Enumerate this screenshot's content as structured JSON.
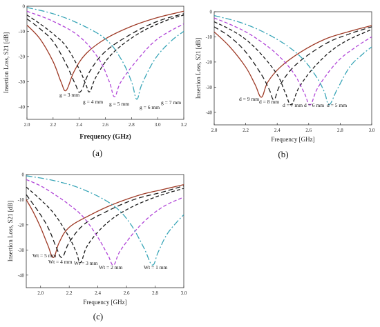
{
  "chart_data": [
    {
      "type": "line",
      "panel_label": "(a)",
      "xlabel": "Frequency (GHz)",
      "ylabel": "Insertion Loss, S21 [dB]",
      "xlim": [
        2.0,
        3.2
      ],
      "ylim": [
        -45,
        0
      ],
      "xticks": [
        "2.0",
        "2.2",
        "2.4",
        "2.6",
        "2.8",
        "3.0",
        "3.2"
      ],
      "yticks": [
        "0",
        "-10",
        "-20",
        "-30",
        "-40"
      ],
      "grid": false,
      "series": [
        {
          "name": "g = 3 mm",
          "color": "#9e3a26",
          "dash": "solid",
          "x": [
            2.0,
            2.1,
            2.2,
            2.26,
            2.3,
            2.36,
            2.45,
            2.6,
            2.8,
            3.0,
            3.2
          ],
          "y": [
            -7.5,
            -13,
            -22,
            -30,
            -33.5,
            -26,
            -19,
            -13,
            -8,
            -4.5,
            -2
          ]
        },
        {
          "name": "g = 4 mm",
          "color": "#1a1a1a",
          "dash": "long",
          "x": [
            2.0,
            2.1,
            2.2,
            2.3,
            2.37,
            2.41,
            2.48,
            2.6,
            2.8,
            3.0,
            3.2
          ],
          "y": [
            -5,
            -9,
            -14,
            -23,
            -31,
            -34,
            -26,
            -18,
            -11,
            -6,
            -3
          ]
        },
        {
          "name": "g = 5 mm",
          "color": "#1a1a1a",
          "dash": "medium",
          "x": [
            2.0,
            2.1,
            2.2,
            2.3,
            2.4,
            2.45,
            2.48,
            2.53,
            2.65,
            2.85,
            3.05,
            3.2
          ],
          "y": [
            -3.5,
            -7,
            -11,
            -16,
            -25,
            -31,
            -34,
            -28,
            -19,
            -11,
            -6,
            -3.5
          ]
        },
        {
          "name": "g = 6 mm",
          "color": "#b146d8",
          "dash": "medium",
          "x": [
            2.0,
            2.2,
            2.4,
            2.55,
            2.63,
            2.67,
            2.72,
            2.85,
            3.0,
            3.2
          ],
          "y": [
            -2,
            -6,
            -12,
            -21,
            -30,
            -36,
            -30,
            -21,
            -13,
            -7
          ]
        },
        {
          "name": "g = 7 mm",
          "color": "#3aa6b8",
          "dash": "dashdot",
          "x": [
            2.0,
            2.2,
            2.4,
            2.6,
            2.72,
            2.8,
            2.84,
            2.88,
            2.98,
            3.1,
            3.2
          ],
          "y": [
            -0.5,
            -3,
            -7,
            -13,
            -21,
            -30,
            -37,
            -31,
            -21,
            -14,
            -10
          ]
        }
      ],
      "annotations": [
        "g = 3 mm",
        "g = 4 mm",
        "g = 5 mm",
        "g = 6 mm",
        "g = 7 mm"
      ]
    },
    {
      "type": "line",
      "panel_label": "(b)",
      "xlabel": "Frequency [GHz]",
      "ylabel": "Insertion Loss, S21 [dB]",
      "xlim": [
        2.0,
        3.0
      ],
      "ylim": [
        -45,
        0
      ],
      "xticks": [
        "2.0",
        "2.2",
        "2.4",
        "2.6",
        "2.8",
        "3.0"
      ],
      "yticks": [
        "0",
        "-10",
        "-20",
        "-30",
        "-40"
      ],
      "grid": false,
      "series": [
        {
          "name": "d = 9 mm",
          "color": "#9e3a26",
          "dash": "solid",
          "x": [
            2.0,
            2.1,
            2.2,
            2.26,
            2.3,
            2.34,
            2.42,
            2.55,
            2.7,
            2.85,
            3.0
          ],
          "y": [
            -8,
            -14,
            -22,
            -29,
            -34,
            -28,
            -22,
            -16,
            -11,
            -8,
            -5.5
          ]
        },
        {
          "name": "d = 8 mm",
          "color": "#1a1a1a",
          "dash": "long",
          "x": [
            2.0,
            2.1,
            2.2,
            2.3,
            2.35,
            2.38,
            2.42,
            2.52,
            2.7,
            2.85,
            3.0
          ],
          "y": [
            -6,
            -10,
            -16,
            -25,
            -31,
            -35,
            -29,
            -21,
            -13,
            -9,
            -6
          ]
        },
        {
          "name": "d = 7 mm",
          "color": "#1a1a1a",
          "dash": "medium",
          "x": [
            2.0,
            2.1,
            2.2,
            2.3,
            2.4,
            2.45,
            2.49,
            2.54,
            2.65,
            2.8,
            3.0
          ],
          "y": [
            -4,
            -7,
            -11,
            -17,
            -25,
            -32,
            -37,
            -30,
            -21,
            -13,
            -7
          ]
        },
        {
          "name": "d = 6 mm",
          "color": "#b146d8",
          "dash": "medium",
          "x": [
            2.0,
            2.1,
            2.2,
            2.3,
            2.4,
            2.5,
            2.57,
            2.61,
            2.66,
            2.78,
            2.9,
            3.0
          ],
          "y": [
            -2.5,
            -5,
            -8,
            -12,
            -17,
            -24,
            -32,
            -37,
            -30,
            -20,
            -14,
            -10
          ]
        },
        {
          "name": "d = 5 mm",
          "color": "#3aa6b8",
          "dash": "dashdot",
          "x": [
            2.0,
            2.2,
            2.4,
            2.55,
            2.65,
            2.7,
            2.73,
            2.78,
            2.86,
            2.94,
            3.0
          ],
          "y": [
            -1.5,
            -5,
            -11,
            -18,
            -26,
            -32,
            -37,
            -31,
            -22,
            -17,
            -14
          ]
        }
      ],
      "annotations": [
        "d = 9 mm",
        "d = 8 mm",
        "d = 7 mm",
        "d = 6 mm",
        "d = 5 mm"
      ]
    },
    {
      "type": "line",
      "panel_label": "(c)",
      "xlabel": "Frequency [GHz]",
      "ylabel": "Insertion Loss, S21 [dB]",
      "xlim": [
        1.9,
        3.0
      ],
      "ylim": [
        -45,
        0
      ],
      "xticks": [
        "2.0",
        "2.2",
        "2.4",
        "2.6",
        "2.8",
        "3.0"
      ],
      "yticks": [
        "0",
        "-10",
        "-20",
        "-30",
        "-40"
      ],
      "grid": false,
      "series": [
        {
          "name": "Wt = 5 mm",
          "color": "#9e3a26",
          "dash": "solid",
          "x": [
            1.9,
            1.95,
            2.0,
            2.05,
            2.09,
            2.13,
            2.2,
            2.35,
            2.5,
            2.7,
            2.85,
            3.0
          ],
          "y": [
            -10,
            -15,
            -21,
            -28,
            -33,
            -27,
            -21,
            -16,
            -12,
            -8,
            -6,
            -4
          ]
        },
        {
          "name": "Wt = 4 mm",
          "color": "#1a1a1a",
          "dash": "long",
          "x": [
            1.9,
            2.0,
            2.06,
            2.11,
            2.15,
            2.2,
            2.3,
            2.45,
            2.65,
            2.85,
            3.0
          ],
          "y": [
            -8,
            -16,
            -22,
            -29,
            -33,
            -27,
            -20,
            -15,
            -10,
            -7,
            -4.5
          ]
        },
        {
          "name": "Wt = 3 mm",
          "color": "#1a1a1a",
          "dash": "medium",
          "x": [
            1.9,
            2.0,
            2.1,
            2.2,
            2.25,
            2.28,
            2.33,
            2.45,
            2.6,
            2.8,
            3.0
          ],
          "y": [
            -5,
            -10,
            -16,
            -25,
            -31,
            -35,
            -28,
            -20,
            -14,
            -9,
            -5.5
          ]
        },
        {
          "name": "Wt = 2 mm",
          "color": "#b146d8",
          "dash": "medium",
          "x": [
            1.9,
            2.0,
            2.1,
            2.2,
            2.3,
            2.4,
            2.47,
            2.51,
            2.56,
            2.7,
            2.85,
            3.0
          ],
          "y": [
            -2,
            -4.5,
            -8,
            -12,
            -17,
            -25,
            -32,
            -36,
            -30,
            -20,
            -13,
            -9
          ]
        },
        {
          "name": "Wt = 1 mm",
          "color": "#3aa6b8",
          "dash": "dashdot",
          "x": [
            1.9,
            2.1,
            2.3,
            2.5,
            2.62,
            2.72,
            2.78,
            2.82,
            2.88,
            2.95,
            3.0
          ],
          "y": [
            -0.5,
            -2.5,
            -6,
            -12,
            -19,
            -29,
            -36,
            -31,
            -24,
            -19,
            -16
          ]
        }
      ],
      "annotations": [
        "Wt = 5 mm",
        "Wt = 4 mm",
        "Wt = 3 mm",
        "Wt = 2 mm",
        "Wt = 1 mm"
      ]
    }
  ]
}
